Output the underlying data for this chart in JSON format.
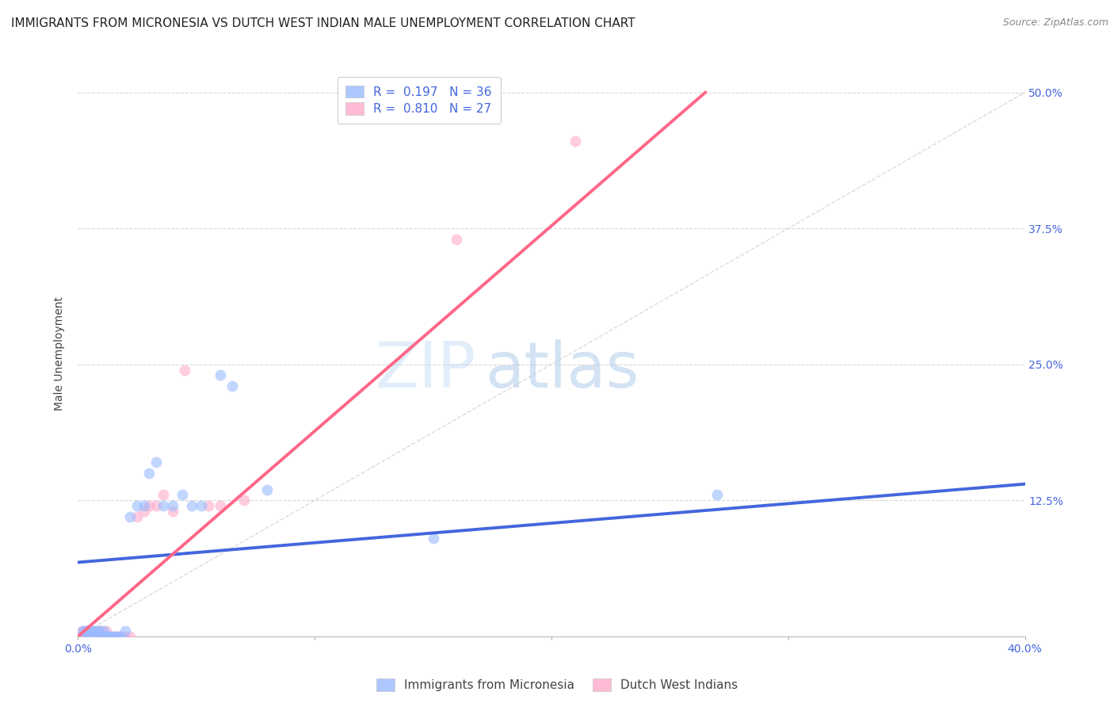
{
  "title": "IMMIGRANTS FROM MICRONESIA VS DUTCH WEST INDIAN MALE UNEMPLOYMENT CORRELATION CHART",
  "source": "Source: ZipAtlas.com",
  "ylabel": "Male Unemployment",
  "yticks": [
    0.0,
    0.125,
    0.25,
    0.375,
    0.5
  ],
  "ytick_labels": [
    "",
    "12.5%",
    "25.0%",
    "37.5%",
    "50.0%"
  ],
  "xlim": [
    0.0,
    0.4
  ],
  "ylim": [
    0.0,
    0.52
  ],
  "watermark": "ZIPatlas",
  "background_color": "#ffffff",
  "grid_color": "#d8d8d8",
  "blue_color": "#99bbff",
  "pink_color": "#ffaacc",
  "blue_line_color": "#4466dd",
  "pink_line_color": "#ff6688",
  "legend_r_blue": "R =  0.197",
  "legend_n_blue": "N = 36",
  "legend_r_pink": "R =  0.810",
  "legend_n_pink": "N = 27",
  "legend_label_blue": "Immigrants from Micronesia",
  "legend_label_pink": "Dutch West Indians",
  "blue_scatter_x": [
    0.002,
    0.003,
    0.004,
    0.004,
    0.005,
    0.005,
    0.006,
    0.007,
    0.008,
    0.009,
    0.01,
    0.01,
    0.011,
    0.012,
    0.013,
    0.014,
    0.015,
    0.016,
    0.017,
    0.018,
    0.02,
    0.022,
    0.025,
    0.028,
    0.03,
    0.033,
    0.036,
    0.04,
    0.044,
    0.048,
    0.052,
    0.06,
    0.065,
    0.08,
    0.15,
    0.27
  ],
  "blue_scatter_y": [
    0.005,
    0.005,
    0.005,
    0.005,
    0.005,
    0.0,
    0.005,
    0.005,
    0.005,
    0.005,
    0.0,
    0.0,
    0.005,
    0.0,
    0.0,
    0.0,
    0.0,
    0.0,
    0.0,
    0.0,
    0.005,
    0.11,
    0.12,
    0.12,
    0.15,
    0.16,
    0.12,
    0.12,
    0.13,
    0.12,
    0.12,
    0.24,
    0.23,
    0.135,
    0.09,
    0.13
  ],
  "pink_scatter_x": [
    0.002,
    0.003,
    0.004,
    0.005,
    0.006,
    0.007,
    0.008,
    0.009,
    0.01,
    0.012,
    0.014,
    0.016,
    0.018,
    0.02,
    0.022,
    0.025,
    0.028,
    0.03,
    0.033,
    0.036,
    0.04,
    0.045,
    0.055,
    0.06,
    0.07,
    0.16,
    0.21
  ],
  "pink_scatter_y": [
    0.005,
    0.005,
    0.0,
    0.0,
    0.0,
    0.0,
    0.0,
    0.005,
    0.005,
    0.005,
    0.0,
    0.0,
    0.0,
    0.0,
    0.0,
    0.11,
    0.115,
    0.12,
    0.12,
    0.13,
    0.115,
    0.245,
    0.12,
    0.12,
    0.125,
    0.365,
    0.455
  ],
  "blue_trend_x": [
    0.0,
    0.4
  ],
  "blue_trend_y": [
    0.068,
    0.14
  ],
  "pink_trend_x": [
    0.0,
    0.265
  ],
  "pink_trend_y": [
    0.0,
    0.5
  ],
  "dashed_line_x": [
    0.0,
    0.4
  ],
  "dashed_line_y": [
    0.0,
    0.5
  ],
  "marker_size": 100,
  "title_fontsize": 11,
  "axis_label_fontsize": 10,
  "tick_fontsize": 10,
  "legend_fontsize": 11,
  "source_fontsize": 9
}
